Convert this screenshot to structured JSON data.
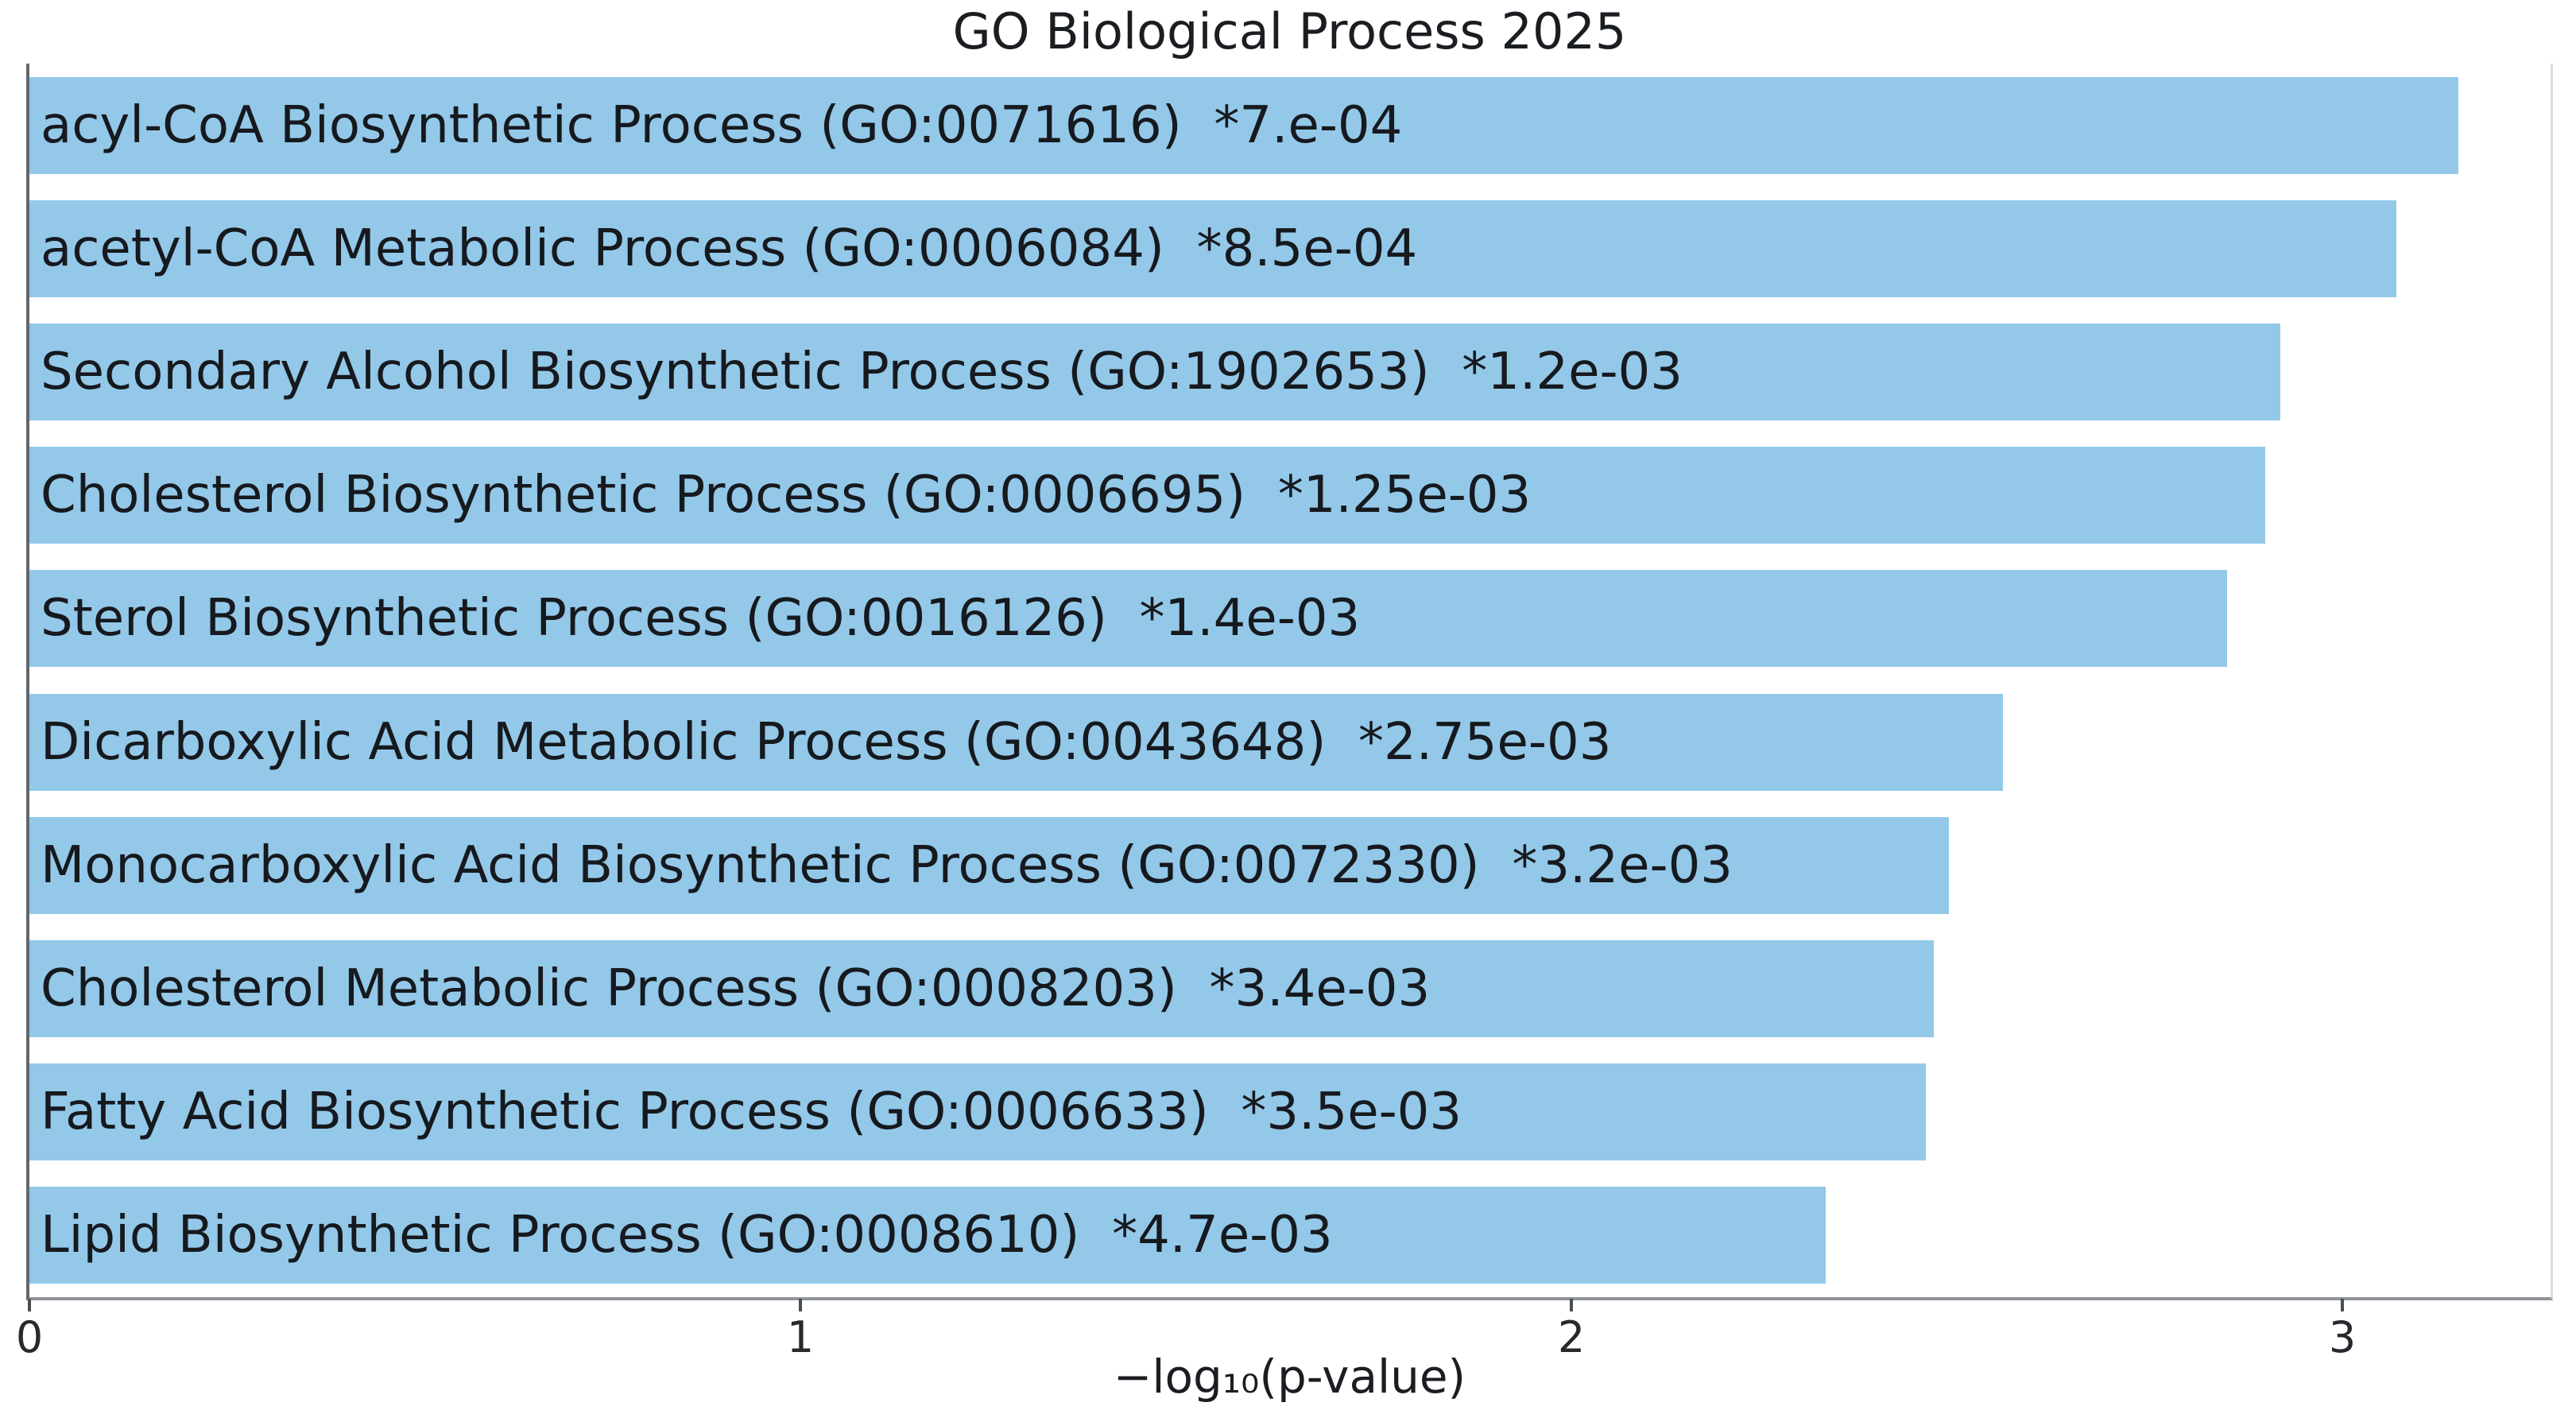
{
  "chart_data": {
    "type": "bar",
    "orientation": "horizontal",
    "title": "GO Biological Process 2025",
    "xlabel": "−log₁₀(p-value)",
    "xlim": [
      0,
      3.27
    ],
    "xticks": [
      0,
      1,
      2,
      3
    ],
    "grid": false,
    "legend": "none",
    "bar_color": "#93c8e9",
    "text_color": "#16191d",
    "spine_color": "#6d7175",
    "bars": [
      {
        "term": "acyl-CoA Biosynthetic Process",
        "go_id": "GO:0071616",
        "p_label": "*7.e-04",
        "value": 3.15
      },
      {
        "term": "acetyl-CoA Metabolic Process",
        "go_id": "GO:0006084",
        "p_label": "*8.5e-04",
        "value": 3.07
      },
      {
        "term": "Secondary Alcohol Biosynthetic Process",
        "go_id": "GO:1902653",
        "p_label": "*1.2e-03",
        "value": 2.92
      },
      {
        "term": "Cholesterol Biosynthetic Process",
        "go_id": "GO:0006695",
        "p_label": "*1.25e-03",
        "value": 2.9
      },
      {
        "term": "Sterol Biosynthetic Process",
        "go_id": "GO:0016126",
        "p_label": "*1.4e-03",
        "value": 2.85
      },
      {
        "term": "Dicarboxylic Acid Metabolic Process",
        "go_id": "GO:0043648",
        "p_label": "*2.75e-03",
        "value": 2.56
      },
      {
        "term": "Monocarboxylic Acid Biosynthetic Process",
        "go_id": "GO:0072330",
        "p_label": "*3.2e-03",
        "value": 2.49
      },
      {
        "term": "Cholesterol Metabolic Process",
        "go_id": "GO:0008203",
        "p_label": "*3.4e-03",
        "value": 2.47
      },
      {
        "term": "Fatty Acid Biosynthetic Process",
        "go_id": "GO:0006633",
        "p_label": "*3.5e-03",
        "value": 2.46
      },
      {
        "term": "Lipid Biosynthetic Process",
        "go_id": "GO:0008610",
        "p_label": "*4.7e-03",
        "value": 2.33
      }
    ]
  }
}
